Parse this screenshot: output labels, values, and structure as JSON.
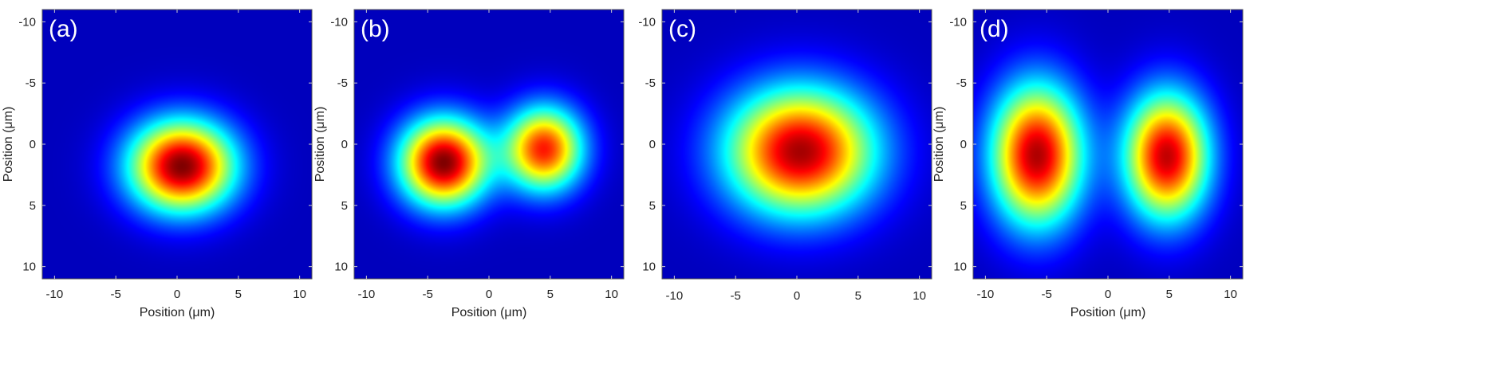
{
  "figure": {
    "panels": [
      {
        "label": "(a)"
      },
      {
        "label": "(b)"
      },
      {
        "label": "(c)"
      },
      {
        "label": "(d)"
      }
    ]
  },
  "chart_data": [
    {
      "type": "heatmap",
      "panel_label": "(a)",
      "xlabel": "Position (μm)",
      "ylabel": "Position (μm)",
      "xlim": [
        -11,
        11
      ],
      "ylim": [
        11,
        -11
      ],
      "xticks": [
        -10,
        -5,
        0,
        5,
        10
      ],
      "yticks": [
        -10,
        -5,
        0,
        5,
        10
      ],
      "colormap": "jet",
      "background": "#00008f",
      "spots": [
        {
          "x": 0.4,
          "y": 1.8,
          "sx": 3.0,
          "sy": 2.6,
          "amp": 1.0
        }
      ]
    },
    {
      "type": "heatmap",
      "panel_label": "(b)",
      "xlabel": "Position (μm)",
      "ylabel": "Position (μm)",
      "xlim": [
        -11,
        11
      ],
      "ylim": [
        11,
        -11
      ],
      "xticks": [
        -10,
        -5,
        0,
        5,
        10
      ],
      "yticks": [
        -10,
        -5,
        0,
        5,
        10
      ],
      "colormap": "jet",
      "background": "#00008f",
      "spots": [
        {
          "x": -3.7,
          "y": 1.5,
          "sx": 2.5,
          "sy": 2.5,
          "amp": 1.0
        },
        {
          "x": 4.5,
          "y": 0.4,
          "sx": 2.2,
          "sy": 2.4,
          "amp": 0.84
        }
      ]
    },
    {
      "type": "heatmap",
      "panel_label": "(c)",
      "xlabel": "",
      "ylabel": "",
      "xlim": [
        -11,
        11
      ],
      "ylim": [
        11,
        -11
      ],
      "xticks": [
        -10,
        -5,
        0,
        5,
        10
      ],
      "yticks": [
        -10,
        -5,
        0,
        5,
        10
      ],
      "colormap": "jet",
      "background": "#00008f",
      "spots": [
        {
          "x": 0.3,
          "y": 0.6,
          "sx": 4.2,
          "sy": 3.6,
          "amp": 0.96
        }
      ]
    },
    {
      "type": "heatmap",
      "panel_label": "(d)",
      "xlabel": "Position (μm)",
      "ylabel": "Position (μm)",
      "xlim": [
        -11,
        11
      ],
      "ylim": [
        11,
        -11
      ],
      "xticks": [
        -10,
        -5,
        0,
        5,
        10
      ],
      "yticks": [
        -10,
        -5,
        0,
        5,
        10
      ],
      "colormap": "jet",
      "background": "#00008f",
      "spots": [
        {
          "x": -5.8,
          "y": 0.9,
          "sx": 2.6,
          "sy": 4.0,
          "amp": 0.95
        },
        {
          "x": 4.8,
          "y": 1.0,
          "sx": 2.4,
          "sy": 3.6,
          "amp": 0.93
        }
      ]
    }
  ]
}
